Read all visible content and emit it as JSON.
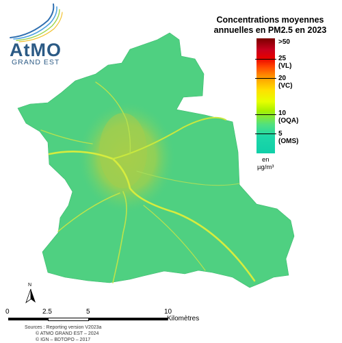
{
  "logo": {
    "name": "AtMO",
    "subtitle": "GRAND EST"
  },
  "title": {
    "line1": "Concentrations moyennes",
    "line2": "annuelles en PM2.5 en 2023"
  },
  "legend": {
    "ticks": [
      {
        "value": ">50",
        "code": ""
      },
      {
        "value": "25",
        "code": "(VL)"
      },
      {
        "value": "20",
        "code": "(VC)"
      },
      {
        "value": "10",
        "code": "(OQA)"
      },
      {
        "value": "5",
        "code": "(OMS)"
      }
    ],
    "unit_line1": "en",
    "unit_line2": "µg/m³"
  },
  "north_label": "N",
  "scale_bar": {
    "labels": [
      "0",
      "2.5",
      "5",
      "10"
    ],
    "unit": "Kilomètres"
  },
  "sources": [
    "Sources : Reporting version V2023a",
    "© ATMO GRAND EST – 2024",
    "© IGN – BDTOPO – 2017"
  ],
  "colors": {
    "map_fill": "#4cd17a",
    "urban": "#9ed24a",
    "road": "#d9e84a",
    "logo_blue": "#2b5a85"
  }
}
